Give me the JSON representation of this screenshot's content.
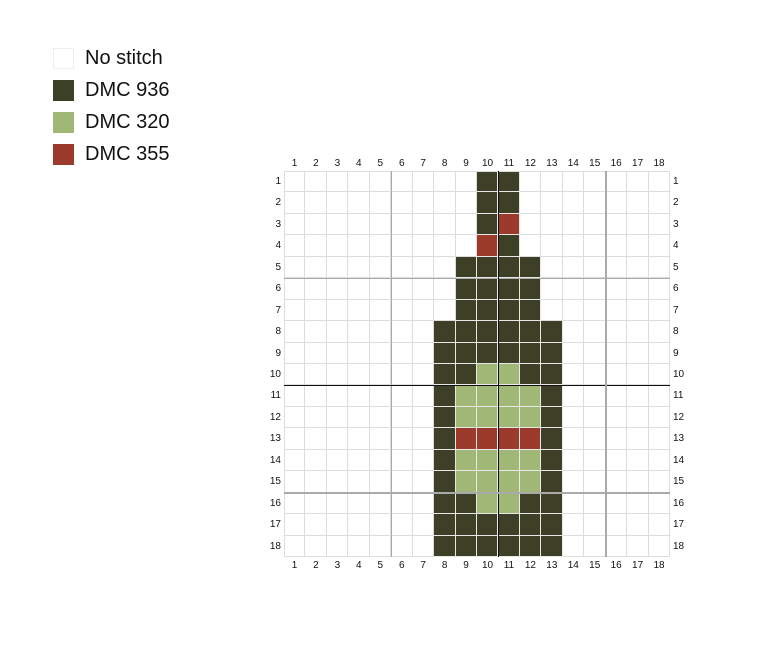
{
  "legend": [
    {
      "key": ".",
      "label": "No stitch",
      "color": "#ffffff"
    },
    {
      "key": "D",
      "label": "DMC 936",
      "color": "#3d4027"
    },
    {
      "key": "L",
      "label": "DMC 320",
      "color": "#a1b776"
    },
    {
      "key": "R",
      "label": "DMC 355",
      "color": "#9c3a2c"
    }
  ],
  "pattern": {
    "columns": 18,
    "rows": 18,
    "cells": [
      ".........DD.......",
      ".........DD.......",
      ".........DR.......",
      ".........RD.......",
      "........DDDD......",
      "........DDDD......",
      "........DDDD......",
      ".......DDDDDD.....",
      ".......DDDDDD.....",
      ".......DDLLDD.....",
      ".......DLLLLD.....",
      ".......DLLLLD.....",
      ".......DRRRRD.....",
      ".......DLLLLD.....",
      ".......DLLLLD.....",
      ".......DDLLDD.....",
      ".......DDDDDD.....",
      ".......DDDDDD....."
    ]
  }
}
